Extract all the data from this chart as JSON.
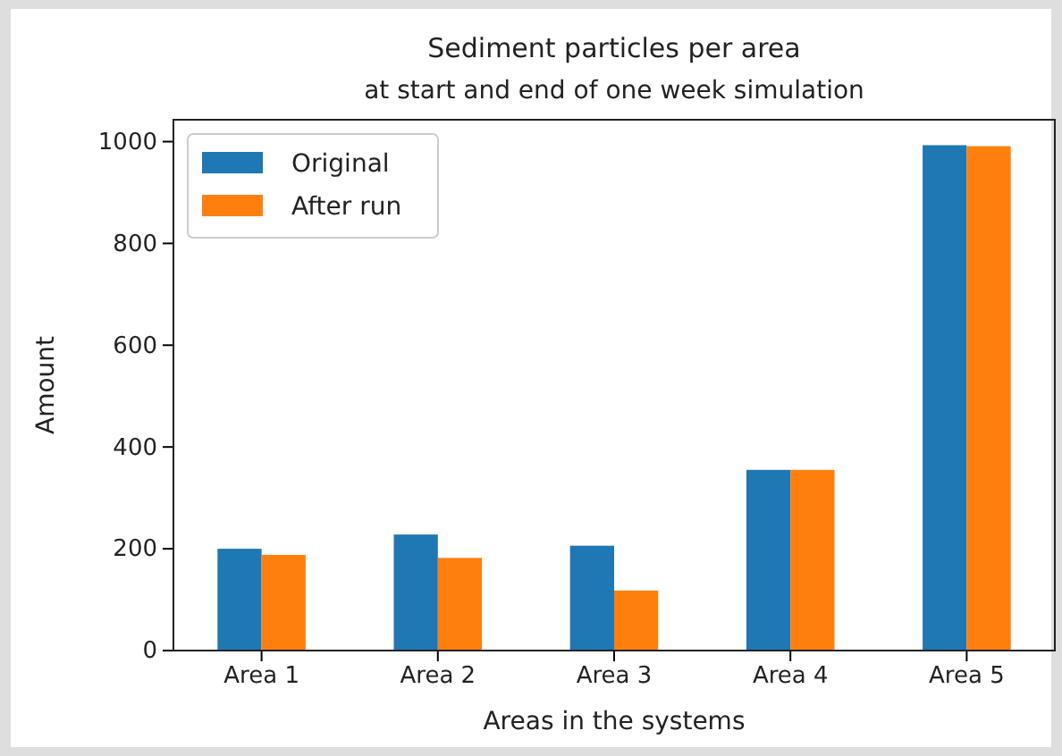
{
  "chart_data": {
    "type": "bar",
    "title": "Sediment particles per area",
    "subtitle": "at start and end of one week simulation",
    "xlabel": "Areas in the systems",
    "ylabel": "Amount",
    "categories": [
      "Area 1",
      "Area 2",
      "Area 3",
      "Area 4",
      "Area 5"
    ],
    "series": [
      {
        "name": "Original",
        "color": "#1f77b4",
        "values": [
          200,
          228,
          206,
          355,
          993
        ]
      },
      {
        "name": "After run",
        "color": "#ff7f0e",
        "values": [
          188,
          182,
          118,
          355,
          991
        ]
      }
    ],
    "ylim": [
      0,
      1043
    ],
    "yticks": [
      0,
      200,
      400,
      600,
      800,
      1000
    ],
    "legend": "top left"
  }
}
